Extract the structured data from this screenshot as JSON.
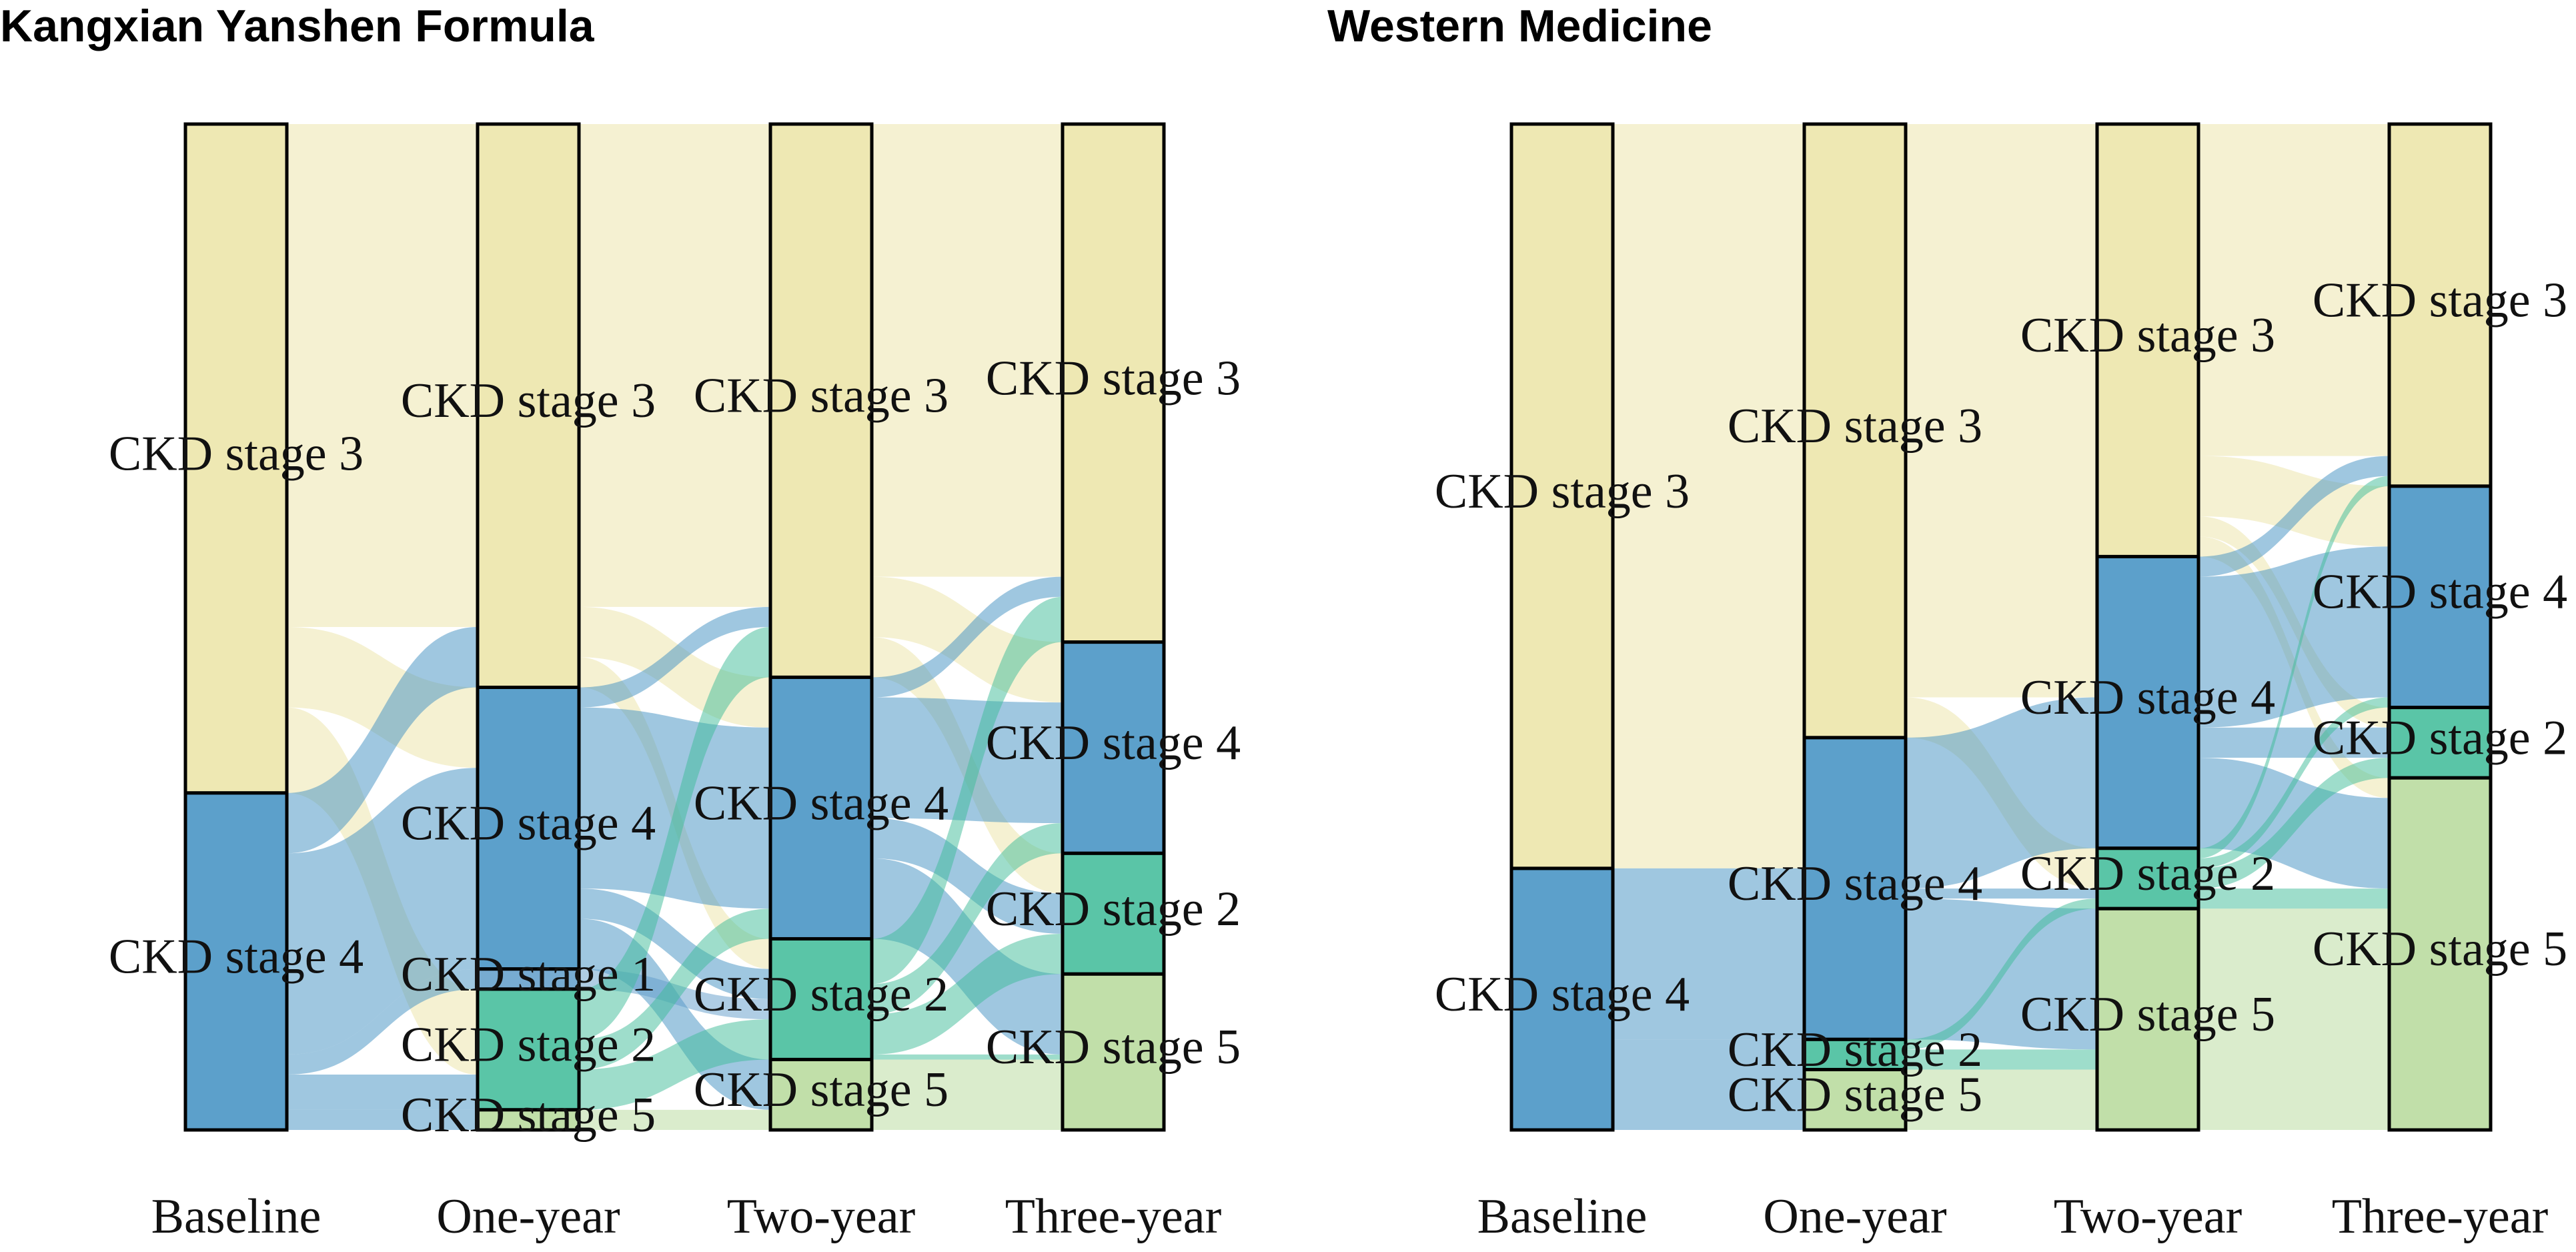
{
  "colors": {
    "CKD stage 1": "#5f9cc9",
    "CKD stage 2": "#3dbb98",
    "CKD stage 3": "#ebe4a6",
    "CKD stage 4": "#3f8fc2",
    "CKD stage 5": "#b6d99a"
  },
  "chart_data": [
    {
      "type": "alluvial",
      "title": "Kangxian Yanshen Formula",
      "xlabel": "",
      "ylabel": "",
      "axes": [
        "Baseline",
        "One-year",
        "Two-year",
        "Three-year"
      ],
      "strata": [
        [
          {
            "label": "CKD stage 3",
            "value": 66.5
          },
          {
            "label": "CKD stage 4",
            "value": 33.5
          }
        ],
        [
          {
            "label": "CKD stage 3",
            "value": 56
          },
          {
            "label": "CKD stage 4",
            "value": 28
          },
          {
            "label": "CKD stage 1",
            "value": 2
          },
          {
            "label": "CKD stage 2",
            "value": 12
          },
          {
            "label": "CKD stage 5",
            "value": 2
          }
        ],
        [
          {
            "label": "CKD stage 3",
            "value": 55
          },
          {
            "label": "CKD stage 4",
            "value": 26
          },
          {
            "label": "CKD stage 2",
            "value": 12
          },
          {
            "label": "CKD stage 5",
            "value": 7
          }
        ],
        [
          {
            "label": "CKD stage 3",
            "value": 51.5
          },
          {
            "label": "CKD stage 4",
            "value": 21
          },
          {
            "label": "CKD stage 2",
            "value": 12
          },
          {
            "label": "CKD stage 5",
            "value": 15.5
          }
        ]
      ],
      "flows": [
        [
          {
            "from": "CKD stage 3",
            "to": "CKD stage 3",
            "value": 50
          },
          {
            "from": "CKD stage 3",
            "to": "CKD stage 4",
            "value": 8
          },
          {
            "from": "CKD stage 3",
            "to": "CKD stage 2",
            "value": 8.5
          },
          {
            "from": "CKD stage 4",
            "to": "CKD stage 3",
            "value": 6
          },
          {
            "from": "CKD stage 4",
            "to": "CKD stage 4",
            "value": 20
          },
          {
            "from": "CKD stage 4",
            "to": "CKD stage 1",
            "value": 2
          },
          {
            "from": "CKD stage 4",
            "to": "CKD stage 2",
            "value": 3.5
          },
          {
            "from": "CKD stage 4",
            "to": "CKD stage 5",
            "value": 2
          }
        ],
        [
          {
            "from": "CKD stage 3",
            "to": "CKD stage 3",
            "value": 48
          },
          {
            "from": "CKD stage 3",
            "to": "CKD stage 4",
            "value": 5
          },
          {
            "from": "CKD stage 3",
            "to": "CKD stage 2",
            "value": 3
          },
          {
            "from": "CKD stage 4",
            "to": "CKD stage 3",
            "value": 2
          },
          {
            "from": "CKD stage 4",
            "to": "CKD stage 4",
            "value": 18
          },
          {
            "from": "CKD stage 4",
            "to": "CKD stage 2",
            "value": 3
          },
          {
            "from": "CKD stage 4",
            "to": "CKD stage 5",
            "value": 5
          },
          {
            "from": "CKD stage 1",
            "to": "CKD stage 2",
            "value": 2
          },
          {
            "from": "CKD stage 2",
            "to": "CKD stage 3",
            "value": 5
          },
          {
            "from": "CKD stage 2",
            "to": "CKD stage 4",
            "value": 3
          },
          {
            "from": "CKD stage 2",
            "to": "CKD stage 2",
            "value": 4
          },
          {
            "from": "CKD stage 5",
            "to": "CKD stage 5",
            "value": 2
          }
        ],
        [
          {
            "from": "CKD stage 3",
            "to": "CKD stage 3",
            "value": 45
          },
          {
            "from": "CKD stage 3",
            "to": "CKD stage 4",
            "value": 6
          },
          {
            "from": "CKD stage 3",
            "to": "CKD stage 2",
            "value": 4
          },
          {
            "from": "CKD stage 4",
            "to": "CKD stage 3",
            "value": 2
          },
          {
            "from": "CKD stage 4",
            "to": "CKD stage 4",
            "value": 12
          },
          {
            "from": "CKD stage 4",
            "to": "CKD stage 2",
            "value": 4
          },
          {
            "from": "CKD stage 4",
            "to": "CKD stage 5",
            "value": 8
          },
          {
            "from": "CKD stage 2",
            "to": "CKD stage 3",
            "value": 4.5
          },
          {
            "from": "CKD stage 2",
            "to": "CKD stage 4",
            "value": 3
          },
          {
            "from": "CKD stage 2",
            "to": "CKD stage 2",
            "value": 4
          },
          {
            "from": "CKD stage 2",
            "to": "CKD stage 5",
            "value": 0.5
          },
          {
            "from": "CKD stage 5",
            "to": "CKD stage 5",
            "value": 7
          }
        ]
      ]
    },
    {
      "type": "alluvial",
      "title": "Western Medicine",
      "xlabel": "",
      "ylabel": "",
      "axes": [
        "Baseline",
        "One-year",
        "Two-year",
        "Three-year"
      ],
      "strata": [
        [
          {
            "label": "CKD stage 3",
            "value": 74
          },
          {
            "label": "CKD stage 4",
            "value": 26
          }
        ],
        [
          {
            "label": "CKD stage 3",
            "value": 61
          },
          {
            "label": "CKD stage 4",
            "value": 30
          },
          {
            "label": "CKD stage 2",
            "value": 3
          },
          {
            "label": "CKD stage 5",
            "value": 6
          }
        ],
        [
          {
            "label": "CKD stage 3",
            "value": 43
          },
          {
            "label": "CKD stage 4",
            "value": 29
          },
          {
            "label": "CKD stage 2",
            "value": 6
          },
          {
            "label": "CKD stage 5",
            "value": 22
          }
        ],
        [
          {
            "label": "CKD stage 3",
            "value": 36
          },
          {
            "label": "CKD stage 4",
            "value": 22
          },
          {
            "label": "CKD stage 2",
            "value": 7
          },
          {
            "label": "CKD stage 5",
            "value": 35
          }
        ]
      ],
      "flows": [
        [
          {
            "from": "CKD stage 3",
            "to": "CKD stage 3",
            "value": 61
          },
          {
            "from": "CKD stage 3",
            "to": "CKD stage 4",
            "value": 13
          },
          {
            "from": "CKD stage 4",
            "to": "CKD stage 4",
            "value": 17
          },
          {
            "from": "CKD stage 4",
            "to": "CKD stage 2",
            "value": 3
          },
          {
            "from": "CKD stage 4",
            "to": "CKD stage 5",
            "value": 6
          }
        ],
        [
          {
            "from": "CKD stage 3",
            "to": "CKD stage 3",
            "value": 43
          },
          {
            "from": "CKD stage 3",
            "to": "CKD stage 4",
            "value": 14
          },
          {
            "from": "CKD stage 3",
            "to": "CKD stage 2",
            "value": 4
          },
          {
            "from": "CKD stage 4",
            "to": "CKD stage 4",
            "value": 15
          },
          {
            "from": "CKD stage 4",
            "to": "CKD stage 2",
            "value": 1
          },
          {
            "from": "CKD stage 4",
            "to": "CKD stage 5",
            "value": 14
          },
          {
            "from": "CKD stage 2",
            "to": "CKD stage 2",
            "value": 1
          },
          {
            "from": "CKD stage 2",
            "to": "CKD stage 5",
            "value": 2
          },
          {
            "from": "CKD stage 5",
            "to": "CKD stage 5",
            "value": 6
          }
        ],
        [
          {
            "from": "CKD stage 3",
            "to": "CKD stage 3",
            "value": 33
          },
          {
            "from": "CKD stage 3",
            "to": "CKD stage 4",
            "value": 6
          },
          {
            "from": "CKD stage 3",
            "to": "CKD stage 2",
            "value": 2
          },
          {
            "from": "CKD stage 3",
            "to": "CKD stage 5",
            "value": 2
          },
          {
            "from": "CKD stage 4",
            "to": "CKD stage 3",
            "value": 2
          },
          {
            "from": "CKD stage 4",
            "to": "CKD stage 4",
            "value": 15
          },
          {
            "from": "CKD stage 4",
            "to": "CKD stage 2",
            "value": 3
          },
          {
            "from": "CKD stage 4",
            "to": "CKD stage 5",
            "value": 9
          },
          {
            "from": "CKD stage 2",
            "to": "CKD stage 3",
            "value": 1
          },
          {
            "from": "CKD stage 2",
            "to": "CKD stage 4",
            "value": 1
          },
          {
            "from": "CKD stage 2",
            "to": "CKD stage 2",
            "value": 2
          },
          {
            "from": "CKD stage 2",
            "to": "CKD stage 5",
            "value": 2
          },
          {
            "from": "CKD stage 5",
            "to": "CKD stage 5",
            "value": 22
          }
        ]
      ]
    }
  ]
}
